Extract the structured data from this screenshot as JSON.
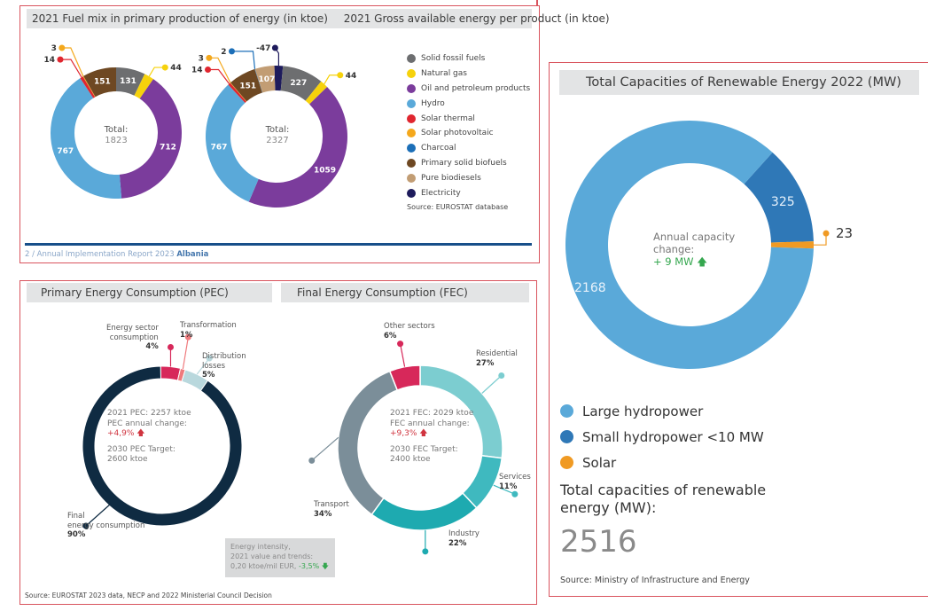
{
  "top_panel": {
    "header_left": "2021 Fuel mix in primary production of energy (in ktoe)",
    "header_right": "2021 Gross available energy per product (in ktoe)",
    "legend": [
      {
        "label": "Solid fossil fuels",
        "color": "#6d6e70"
      },
      {
        "label": "Natural gas",
        "color": "#f6d20c"
      },
      {
        "label": "Oil and petroleum products",
        "color": "#7b3c9c"
      },
      {
        "label": "Hydro",
        "color": "#5aa9d9"
      },
      {
        "label": "Solar thermal",
        "color": "#e0262f"
      },
      {
        "label": "Solar photovoltaic",
        "color": "#f4a81c"
      },
      {
        "label": "Charcoal",
        "color": "#1c6fb8"
      },
      {
        "label": "Primary solid biofuels",
        "color": "#6e4822"
      },
      {
        "label": "Pure biodiesels",
        "color": "#c29d74"
      },
      {
        "label": "Electricity",
        "color": "#1e1b5c"
      }
    ],
    "source": "Source: EUROSTAT database",
    "footer_prefix": "2 / Annual Implementation Report 2023",
    "footer_country": "Albania"
  },
  "bottom_panel": {
    "header_left": "Primary Energy Consumption (PEC)",
    "header_right": "Final Energy Consumption (FEC)",
    "pec_center": {
      "line1": "2021 PEC: 2257 ktoe",
      "line2": "PEC annual change:",
      "change": "+4,9%",
      "line4": "2030 PEC Target:",
      "line5": "2600 ktoe"
    },
    "fec_center": {
      "line1": "2021 FEC: 2029 ktoe",
      "line2": "FEC annual change:",
      "change": "+9,3%",
      "line4": "2030 FEC Target:",
      "line5": "2400 ktoe"
    },
    "intensity_note": {
      "line1": "Energy intensity,",
      "line2": "2021 value and trends:",
      "line3": "0,20 ktoe/mil EUR,",
      "change": "-3,5%"
    },
    "source": "Source: EUROSTAT 2023 data, NECP and 2022 Ministerial Council Decision"
  },
  "right_panel": {
    "header": "Total Capacities of Renewable Energy 2022 (MW)",
    "center_line1": "Annual capacity",
    "center_line2": "change:",
    "center_change": "+ 9 MW",
    "total_label": "Total capacities of renewable energy (MW):",
    "total_value": "2516",
    "source": "Source: Ministry of Infrastructure and Energy"
  },
  "chart_data": [
    {
      "type": "pie",
      "variant": "donut",
      "title": "2021 Fuel mix in primary production of energy (in ktoe)",
      "center_label": "Total:",
      "center_value": "1823",
      "categories": [
        "Solid fossil fuels",
        "Natural gas",
        "Oil and petroleum products",
        "Hydro",
        "Solar thermal",
        "Solar photovoltaic",
        "Primary solid biofuels"
      ],
      "values": [
        131,
        44,
        712,
        767,
        14,
        3,
        151
      ],
      "colors": [
        "#6d6e70",
        "#f6d20c",
        "#7b3c9c",
        "#5aa9d9",
        "#e0262f",
        "#f4a81c",
        "#6e4822"
      ]
    },
    {
      "type": "pie",
      "variant": "donut",
      "title": "2021 Gross available energy per product (in ktoe)",
      "center_label": "Total:",
      "center_value": "2327",
      "categories": [
        "Solid fossil fuels",
        "Natural gas",
        "Oil and petroleum products",
        "Hydro",
        "Solar thermal",
        "Solar photovoltaic",
        "Primary solid biofuels",
        "Charcoal",
        "Pure biodiesels",
        "Electricity"
      ],
      "values": [
        227,
        44,
        1059,
        767,
        14,
        3,
        151,
        2,
        107,
        -47
      ],
      "colors": [
        "#6d6e70",
        "#f6d20c",
        "#7b3c9c",
        "#5aa9d9",
        "#e0262f",
        "#f4a81c",
        "#6e4822",
        "#1c6fb8",
        "#c29d74",
        "#1e1b5c"
      ]
    },
    {
      "type": "pie",
      "variant": "donut",
      "title": "Primary Energy Consumption (PEC)",
      "categories": [
        "Energy sector consumption",
        "Transformation",
        "Distribution losses",
        "Final energy consumption"
      ],
      "values": [
        4,
        1,
        5,
        90
      ],
      "unit": "%",
      "colors": [
        "#d7285a",
        "#ef7a7d",
        "#b9d8dd",
        "#0f2b42"
      ]
    },
    {
      "type": "pie",
      "variant": "donut",
      "title": "Final Energy Consumption (FEC)",
      "categories": [
        "Residential",
        "Services",
        "Industry",
        "Transport",
        "Other sectors"
      ],
      "values": [
        27,
        11,
        22,
        34,
        6
      ],
      "unit": "%",
      "colors": [
        "#7ccdd0",
        "#3fb9bf",
        "#1eaab0",
        "#7b8e99",
        "#d7285a"
      ]
    },
    {
      "type": "pie",
      "variant": "donut",
      "title": "Total Capacities of Renewable Energy 2022 (MW)",
      "categories": [
        "Large hydropower",
        "Small hydropower <10 MW",
        "Solar"
      ],
      "values": [
        2168,
        325,
        23
      ],
      "colors": [
        "#5aa9d9",
        "#2f78b7",
        "#f09a23"
      ]
    }
  ]
}
